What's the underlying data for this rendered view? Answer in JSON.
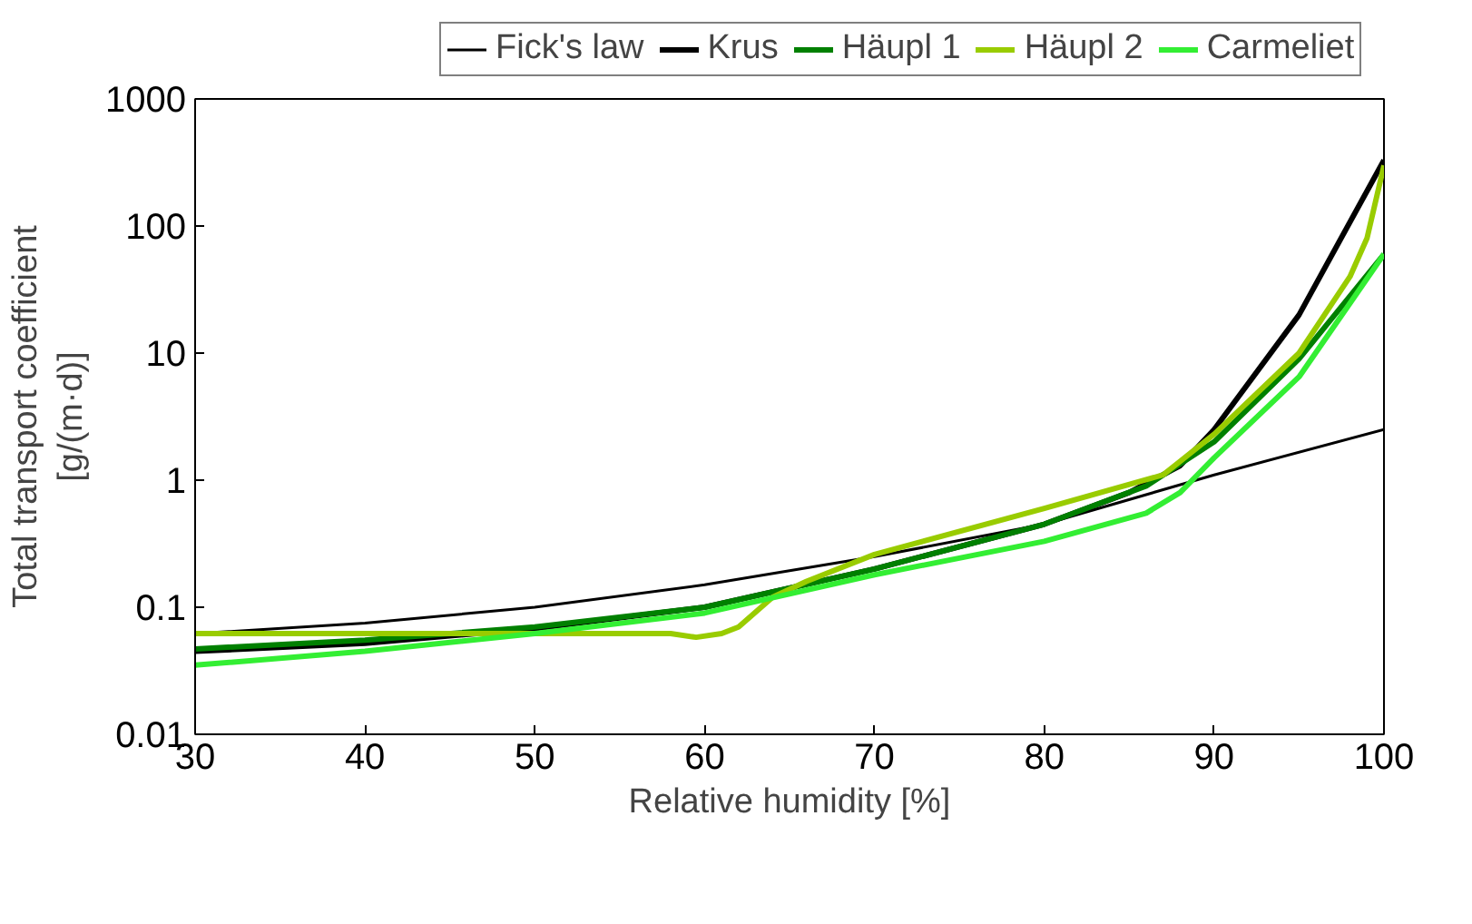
{
  "chart_data": {
    "type": "line",
    "xlabel": "Relative humidity [%]",
    "ylabel": "Total transport coefficient\n[g/(m·d)]",
    "log": "y",
    "xlim": [
      30,
      100
    ],
    "xticks": [
      30,
      40,
      50,
      60,
      70,
      80,
      90,
      100
    ],
    "ylim": [
      0.01,
      1000
    ],
    "yticks": [
      0.01,
      0.1,
      1,
      10,
      100,
      1000
    ],
    "grid": false,
    "legend": "top",
    "marker": "none",
    "line_style": "solid",
    "series": [
      {
        "name": "Fick's law",
        "color": "#000000",
        "x": [
          30,
          40,
          50,
          60,
          70,
          80,
          90,
          100
        ],
        "values": [
          0.062,
          0.075,
          0.1,
          0.15,
          0.25,
          0.45,
          1.1,
          2.5
        ]
      },
      {
        "name": "Krus",
        "color": "#000000",
        "x": [
          30,
          40,
          50,
          60,
          70,
          80,
          85,
          88,
          90,
          95,
          100
        ],
        "values": [
          0.045,
          0.052,
          0.068,
          0.1,
          0.2,
          0.45,
          0.8,
          1.3,
          2.5,
          20,
          330
        ]
      },
      {
        "name": "Häupl 1",
        "color": "#008000",
        "x": [
          30,
          40,
          50,
          60,
          70,
          80,
          86,
          90,
          95,
          100
        ],
        "values": [
          0.047,
          0.055,
          0.07,
          0.1,
          0.2,
          0.45,
          0.9,
          2.0,
          9,
          60
        ]
      },
      {
        "name": "Häupl 2",
        "color": "#99cc00",
        "x": [
          30,
          40,
          50,
          58,
          59.5,
          61,
          62,
          64,
          66,
          70,
          80,
          87,
          90,
          95,
          98,
          99,
          100
        ],
        "values": [
          0.062,
          0.062,
          0.062,
          0.062,
          0.058,
          0.062,
          0.07,
          0.12,
          0.16,
          0.26,
          0.6,
          1.1,
          2.3,
          10,
          40,
          80,
          300
        ]
      },
      {
        "name": "Carmeliet",
        "color": "#33ee33",
        "x": [
          30,
          40,
          50,
          60,
          70,
          80,
          86,
          88,
          90,
          95,
          100
        ],
        "values": [
          0.035,
          0.045,
          0.062,
          0.09,
          0.18,
          0.33,
          0.55,
          0.8,
          1.5,
          6.5,
          60
        ]
      }
    ]
  }
}
